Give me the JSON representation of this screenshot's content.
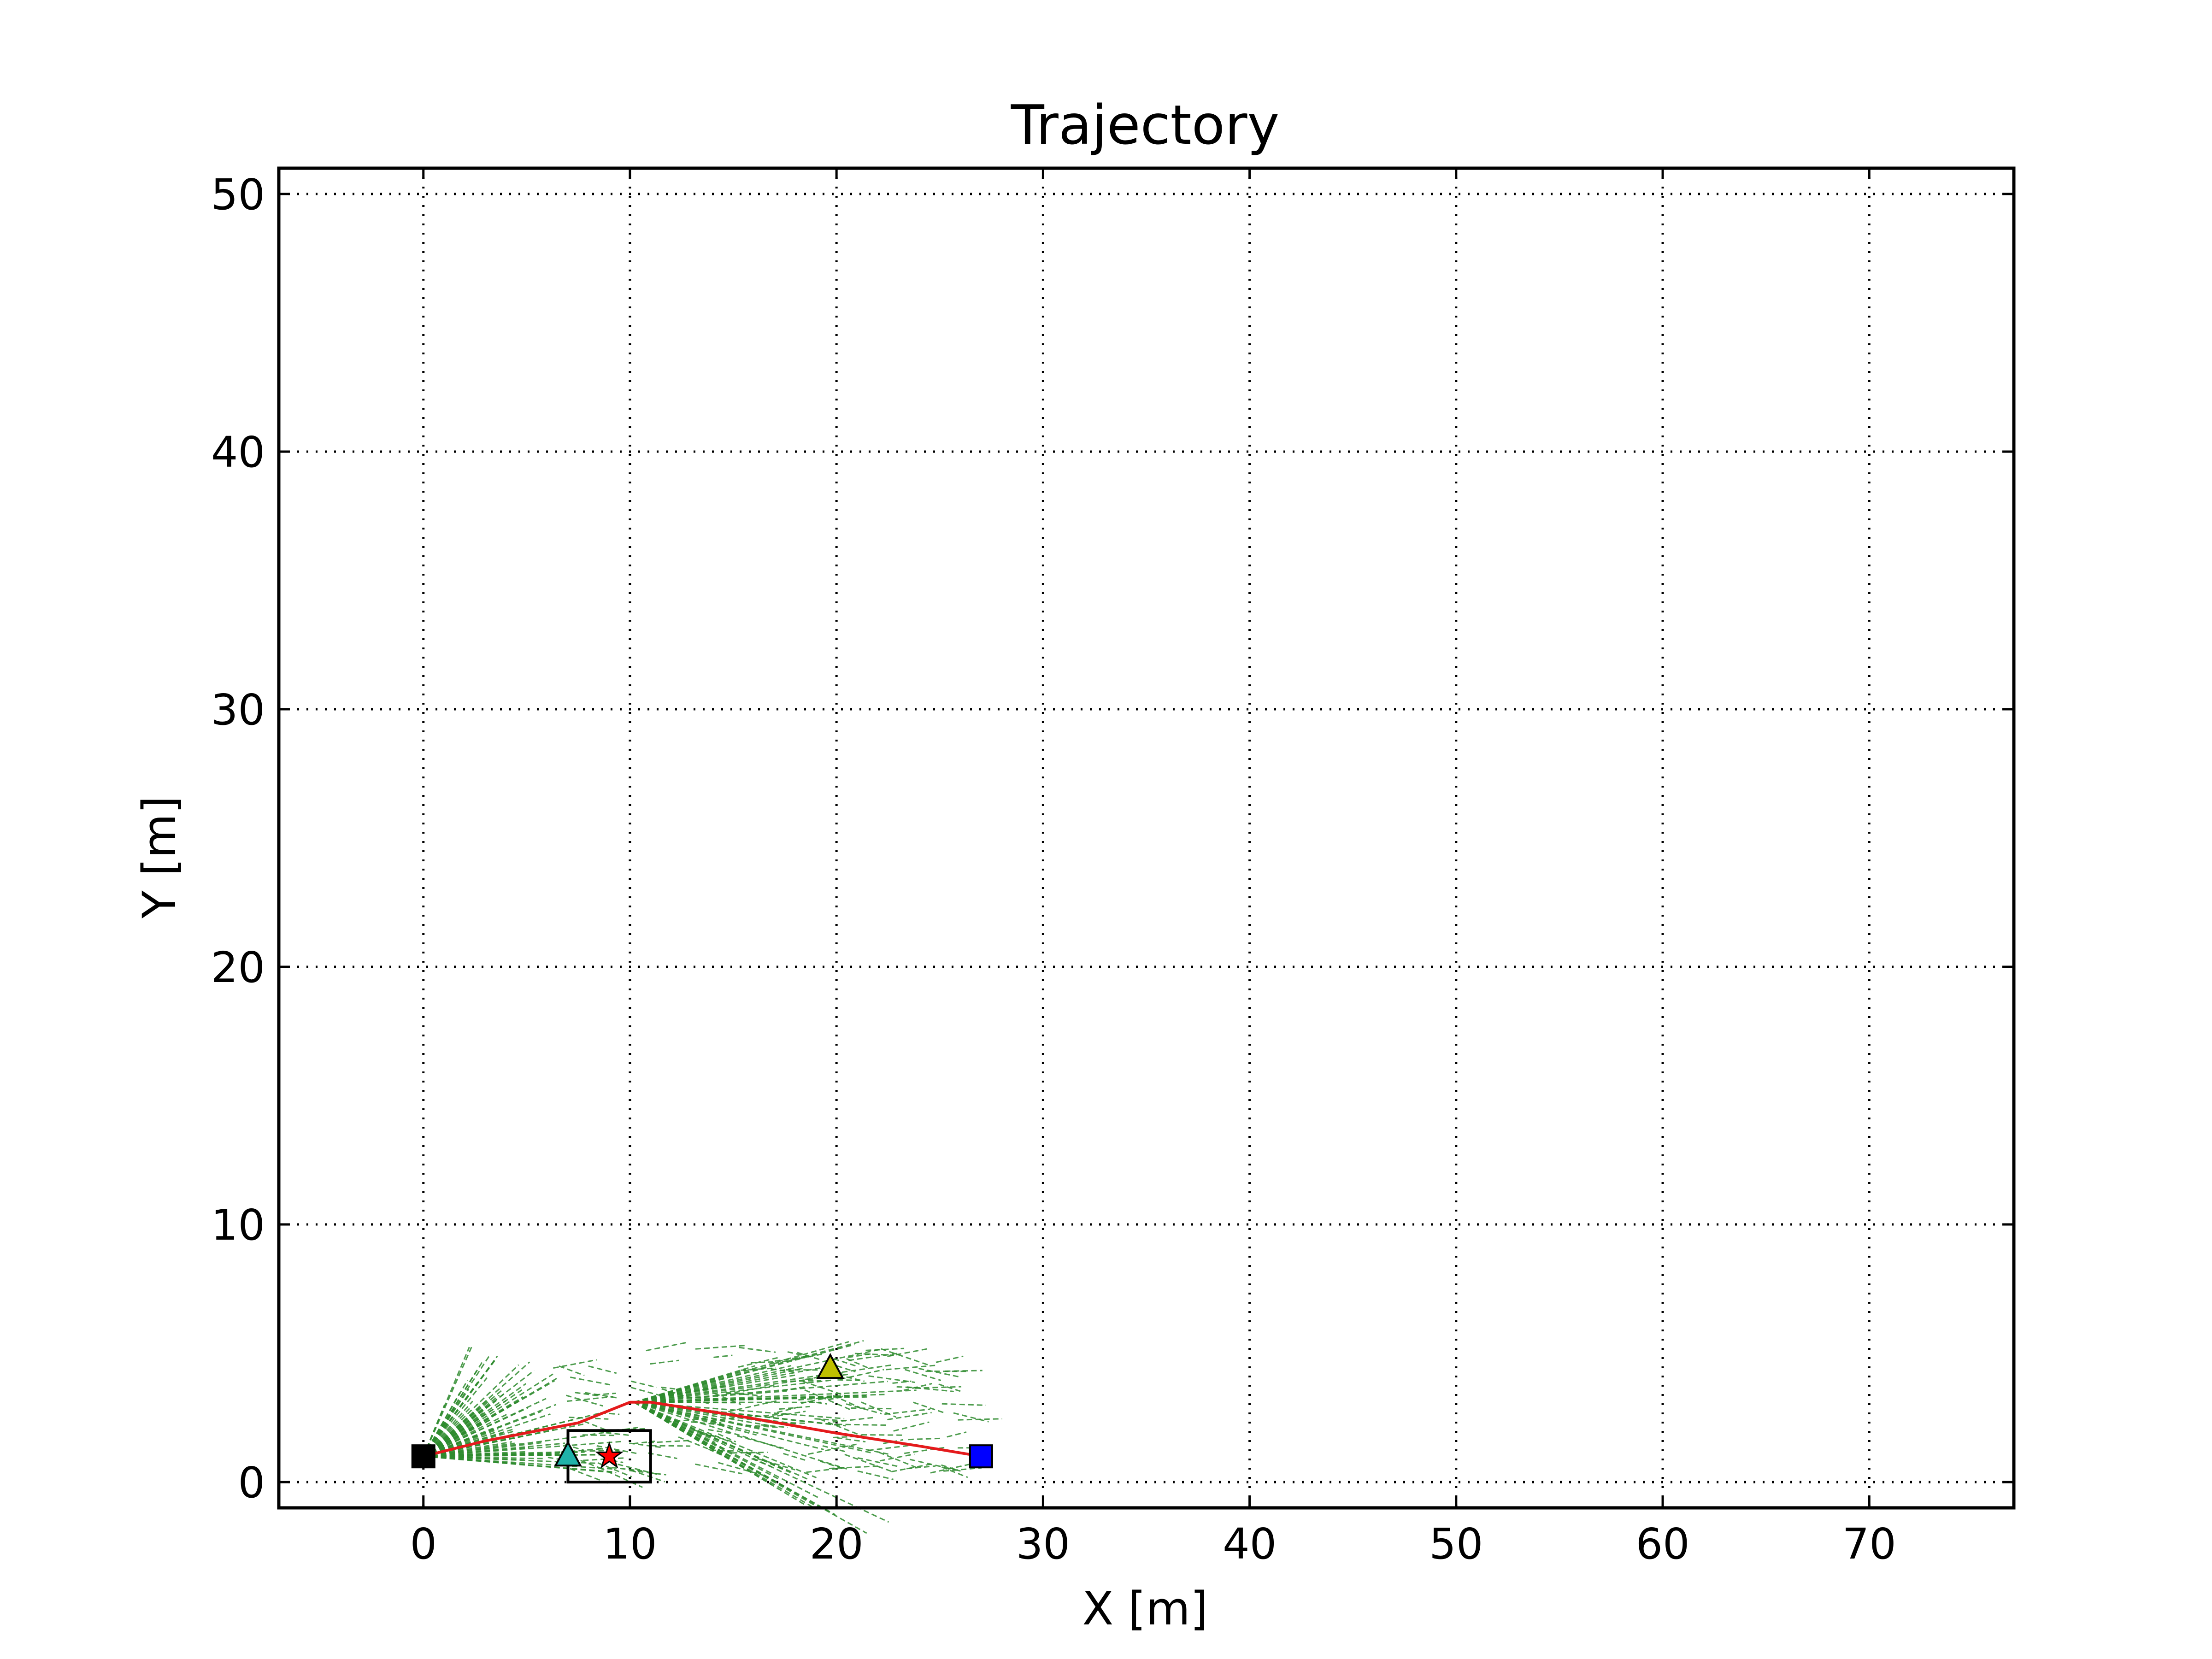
{
  "chart_data": {
    "type": "line",
    "title": "Trajectory",
    "xlabel": "X [m]",
    "ylabel": "Y [m]",
    "xlim": [
      -7,
      77
    ],
    "ylim": [
      -1,
      51
    ],
    "xticks": [
      0,
      10,
      20,
      30,
      40,
      50,
      60,
      70
    ],
    "yticks": [
      0,
      10,
      20,
      30,
      40,
      50
    ],
    "grid": true,
    "grid_style": "dotted",
    "colors": {
      "path": "#e41a1c",
      "particles": "#2e8b2e",
      "start": "#000000",
      "goal": "#0000ff",
      "cyan_marker": "#20b2aa",
      "yellow_marker": "#bfbf00",
      "star": "#ff0000"
    },
    "series": [
      {
        "x": [
          0,
          3,
          7.5,
          10,
          11,
          15,
          20,
          24,
          27
        ],
        "y": [
          1,
          1.6,
          2.3,
          3.1,
          3.1,
          2.6,
          1.9,
          1.4,
          1
        ]
      }
    ],
    "markers": [
      {
        "shape": "square",
        "x": 0,
        "y": 1,
        "color": "#000000"
      },
      {
        "shape": "square",
        "x": 27,
        "y": 1,
        "color": "#0000ff"
      },
      {
        "shape": "triangle",
        "x": 7,
        "y": 1,
        "color": "#20b2aa"
      },
      {
        "shape": "triangle",
        "x": 19.7,
        "y": 4.4,
        "color": "#bfbf00"
      },
      {
        "shape": "star",
        "x": 9,
        "y": 1,
        "color": "#ff0000"
      }
    ],
    "rectangles": [
      {
        "x": 7,
        "y": 0,
        "width": 4,
        "height": 2
      }
    ]
  }
}
